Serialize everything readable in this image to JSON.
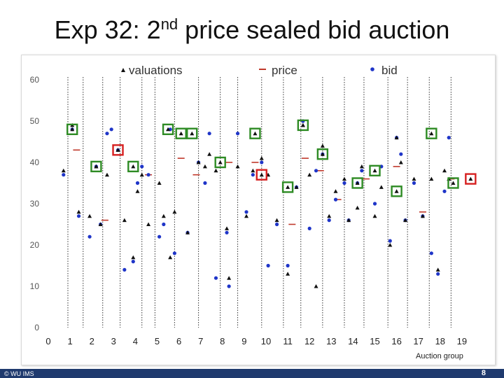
{
  "slide": {
    "title_main": "Exp 32: 2",
    "title_sup": "nd",
    "title_rest": " price sealed bid auction",
    "footer_left": "© WU IMS",
    "page_number": "8"
  },
  "chart_data": {
    "type": "scatter",
    "xlabel": "Auction group",
    "ylabel": "",
    "xlim": [
      0,
      19.5
    ],
    "ylim": [
      0,
      60
    ],
    "xticks": [
      0,
      1,
      2,
      3,
      4,
      5,
      6,
      7,
      8,
      9,
      10,
      11,
      12,
      13,
      14,
      15,
      16,
      17,
      18,
      19
    ],
    "yticks": [
      0,
      10,
      20,
      30,
      40,
      50,
      60
    ],
    "legend": [
      "valuations",
      "price",
      "bid"
    ],
    "legend_position": "top",
    "colors": {
      "valuations": "#111111",
      "price": "#c0392b",
      "bid": "#1f35c8",
      "winner_box": "#2e8b24",
      "loser_box": "#d62020",
      "separator": "#333333"
    },
    "valuations": [
      [
        0.7,
        38
      ],
      [
        1.1,
        49
      ],
      [
        1.4,
        28
      ],
      [
        1.9,
        27
      ],
      [
        2.2,
        39
      ],
      [
        2.4,
        25
      ],
      [
        2.7,
        37
      ],
      [
        3.2,
        43
      ],
      [
        3.5,
        26
      ],
      [
        3.9,
        17
      ],
      [
        4.1,
        33
      ],
      [
        4.3,
        37
      ],
      [
        4.6,
        25
      ],
      [
        5.1,
        35
      ],
      [
        5.3,
        27
      ],
      [
        5.6,
        17
      ],
      [
        5.8,
        28
      ],
      [
        6.4,
        23
      ],
      [
        6.9,
        40
      ],
      [
        7.2,
        39
      ],
      [
        7.4,
        42
      ],
      [
        7.7,
        38
      ],
      [
        8.2,
        24
      ],
      [
        8.3,
        12
      ],
      [
        8.7,
        39
      ],
      [
        9.1,
        27
      ],
      [
        9.4,
        38
      ],
      [
        9.8,
        41
      ],
      [
        10.1,
        37
      ],
      [
        10.5,
        26
      ],
      [
        11.0,
        13
      ],
      [
        11.4,
        34
      ],
      [
        11.7,
        49
      ],
      [
        12.0,
        37
      ],
      [
        12.3,
        10
      ],
      [
        12.6,
        44
      ],
      [
        12.9,
        27
      ],
      [
        13.2,
        33
      ],
      [
        13.6,
        36
      ],
      [
        13.8,
        26
      ],
      [
        14.2,
        29
      ],
      [
        14.4,
        39
      ],
      [
        15.0,
        27
      ],
      [
        15.3,
        34
      ],
      [
        15.7,
        20
      ],
      [
        16.0,
        46
      ],
      [
        16.2,
        40
      ],
      [
        16.4,
        26
      ],
      [
        16.8,
        36
      ],
      [
        17.2,
        27
      ],
      [
        17.6,
        36
      ],
      [
        17.9,
        14
      ],
      [
        18.2,
        38
      ],
      [
        18.4,
        36
      ]
    ],
    "bids": [
      [
        0.7,
        37
      ],
      [
        1.1,
        48
      ],
      [
        1.4,
        27
      ],
      [
        1.9,
        22
      ],
      [
        2.2,
        39
      ],
      [
        2.4,
        25
      ],
      [
        2.7,
        47
      ],
      [
        2.9,
        48
      ],
      [
        3.2,
        43
      ],
      [
        3.5,
        14
      ],
      [
        3.9,
        16
      ],
      [
        4.1,
        35
      ],
      [
        4.3,
        39
      ],
      [
        4.6,
        37
      ],
      [
        5.1,
        22
      ],
      [
        5.3,
        25
      ],
      [
        5.6,
        48
      ],
      [
        5.8,
        18
      ],
      [
        6.4,
        23
      ],
      [
        6.9,
        40
      ],
      [
        7.2,
        35
      ],
      [
        7.4,
        47
      ],
      [
        7.7,
        12
      ],
      [
        8.2,
        23
      ],
      [
        8.3,
        10
      ],
      [
        8.7,
        47
      ],
      [
        9.1,
        28
      ],
      [
        9.4,
        37
      ],
      [
        9.8,
        40
      ],
      [
        10.1,
        15
      ],
      [
        10.5,
        25
      ],
      [
        11.0,
        15
      ],
      [
        11.4,
        34
      ],
      [
        11.7,
        50
      ],
      [
        12.0,
        24
      ],
      [
        12.3,
        38
      ],
      [
        12.6,
        42
      ],
      [
        12.9,
        26
      ],
      [
        13.2,
        31
      ],
      [
        13.6,
        35
      ],
      [
        13.8,
        26
      ],
      [
        14.2,
        35
      ],
      [
        14.4,
        38
      ],
      [
        15.0,
        30
      ],
      [
        15.3,
        39
      ],
      [
        15.7,
        21
      ],
      [
        16.0,
        46
      ],
      [
        16.2,
        42
      ],
      [
        16.4,
        26
      ],
      [
        16.8,
        35
      ],
      [
        17.2,
        27
      ],
      [
        17.6,
        18
      ],
      [
        17.9,
        13
      ],
      [
        18.2,
        33
      ],
      [
        18.4,
        46
      ]
    ],
    "prices": [
      [
        1.3,
        43
      ],
      [
        2.6,
        26
      ],
      [
        4.6,
        37
      ],
      [
        6.1,
        41
      ],
      [
        6.8,
        37
      ],
      [
        8.3,
        40
      ],
      [
        9.5,
        40
      ],
      [
        11.2,
        25
      ],
      [
        11.8,
        41
      ],
      [
        12.5,
        38
      ],
      [
        13.3,
        31
      ],
      [
        14.6,
        36
      ],
      [
        16.0,
        39
      ],
      [
        17.2,
        28
      ],
      [
        18.5,
        36
      ]
    ],
    "winner_markers": [
      [
        1.1,
        48
      ],
      [
        2.2,
        39
      ],
      [
        3.9,
        39
      ],
      [
        5.5,
        48
      ],
      [
        6.1,
        47
      ],
      [
        6.6,
        47
      ],
      [
        7.9,
        40
      ],
      [
        9.5,
        47
      ],
      [
        11.0,
        34
      ],
      [
        11.7,
        49
      ],
      [
        12.6,
        42
      ],
      [
        14.2,
        35
      ],
      [
        15.0,
        38
      ],
      [
        16.0,
        33
      ],
      [
        17.6,
        47
      ],
      [
        18.6,
        35
      ]
    ],
    "loser_markers": [
      [
        3.2,
        43
      ],
      [
        9.8,
        37
      ],
      [
        19.4,
        36
      ]
    ],
    "separators": [
      0.9,
      1.6,
      2.5,
      3.3,
      4.3,
      4.9,
      5.8,
      6.9,
      7.9,
      8.7,
      9.8,
      10.8,
      11.6,
      12.6,
      13.6,
      14.5,
      15.6,
      16.5,
      17.5,
      18.5
    ]
  }
}
